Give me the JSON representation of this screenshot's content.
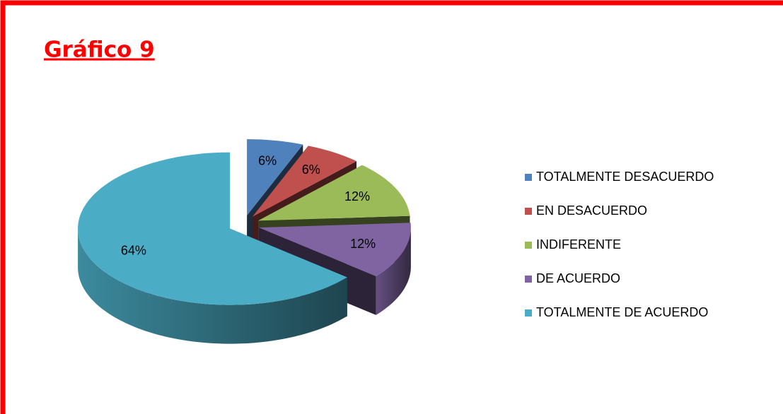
{
  "chart_data": {
    "type": "pie3d",
    "title": "Gráfico 9",
    "categories": [
      "TOTALMENTE DESACUERDO",
      "EN DESACUERDO",
      "INDIFERENTE",
      "DE ACUERDO",
      "TOTALMENTE DE ACUERDO"
    ],
    "values": [
      6,
      6,
      12,
      12,
      64
    ],
    "value_labels": [
      "6%",
      "6%",
      "12%",
      "12%",
      "64%"
    ],
    "colors": [
      "#4f81bd",
      "#c0504d",
      "#9bbb59",
      "#8064a2",
      "#4bacc6"
    ],
    "legend": "right"
  }
}
